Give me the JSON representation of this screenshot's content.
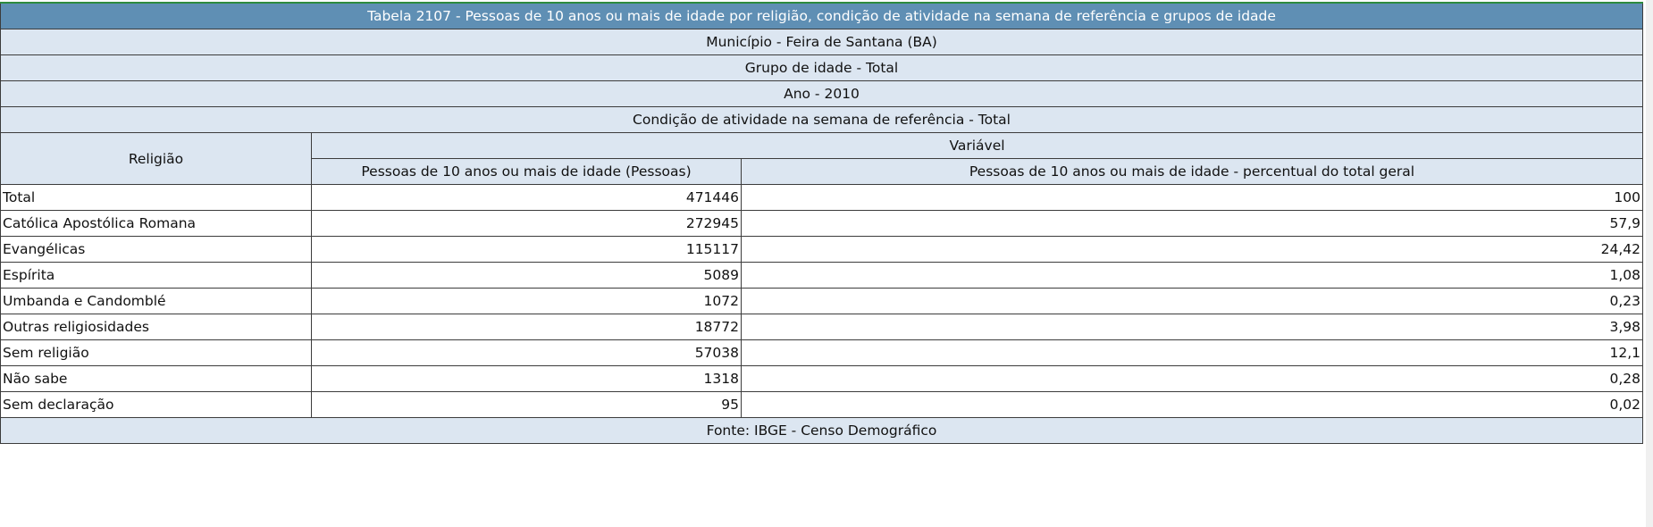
{
  "table": {
    "title": "Tabela 2107 - Pessoas de 10 anos ou mais de idade por religião, condição de atividade na semana de referência e grupos de idade",
    "header_rows": [
      "Município - Feira de Santana (BA)",
      "Grupo de idade - Total",
      "Ano - 2010",
      "Condição de atividade na semana de referência - Total"
    ],
    "row_header": "Religião",
    "group_header": "Variável",
    "columns": [
      "Pessoas de 10 anos ou mais de idade (Pessoas)",
      "Pessoas de 10 anos ou mais de idade - percentual do total geral"
    ],
    "rows": [
      [
        "Total",
        "471446",
        "100"
      ],
      [
        "Católica Apostólica Romana",
        "272945",
        "57,9"
      ],
      [
        "Evangélicas",
        "115117",
        "24,42"
      ],
      [
        "Espírita",
        "5089",
        "1,08"
      ],
      [
        "Umbanda e Candomblé",
        "1072",
        "0,23"
      ],
      [
        "Outras religiosidades",
        "18772",
        "3,98"
      ],
      [
        "Sem religião",
        "57038",
        "12,1"
      ],
      [
        "Não sabe",
        "1318",
        "0,28"
      ],
      [
        "Sem declaração",
        "95",
        "0,02"
      ]
    ],
    "footer": "Fonte: IBGE - Censo Demográfico"
  }
}
